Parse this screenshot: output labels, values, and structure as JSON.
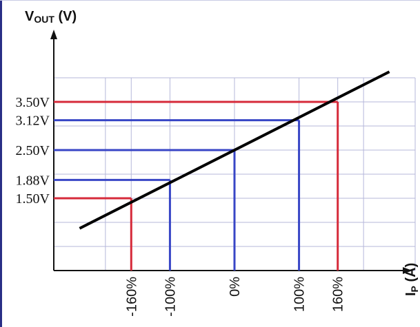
{
  "chart_data": {
    "type": "line",
    "title": "",
    "ylabel": {
      "main": "V",
      "sub": "OUT",
      "unit": " (V)"
    },
    "xlabel": {
      "main": "I",
      "sub": "P",
      "unit": " (A)"
    },
    "xlim": [
      -280,
      280
    ],
    "ylim": [
      0,
      5
    ],
    "x_grid": [
      -280,
      -200,
      -160,
      -100,
      0,
      100,
      160,
      200,
      280
    ],
    "y_grid": [
      0,
      0.5,
      1,
      1.5,
      2,
      2.5,
      3,
      3.5,
      4
    ],
    "grid": true,
    "series": [
      {
        "name": "",
        "color": "#000000",
        "x": [
          -240,
          240
        ],
        "y": [
          0.875,
          4.125
        ]
      }
    ],
    "markers": [
      {
        "x": -160,
        "x_label": "-160%",
        "y": 1.5,
        "y_label": "1.50V",
        "color": "#d62a3a"
      },
      {
        "x": -100,
        "x_label": "-100%",
        "y": 1.88,
        "y_label": "1.88V",
        "color": "#3846c6"
      },
      {
        "x": 0,
        "x_label": "0%",
        "y": 2.5,
        "y_label": "2.50V",
        "color": "#3846c6"
      },
      {
        "x": 100,
        "x_label": "100%",
        "y": 3.12,
        "y_label": "3.12V",
        "color": "#3846c6"
      },
      {
        "x": 160,
        "x_label": "160%",
        "y": 3.5,
        "y_label": "3.50V",
        "color": "#d62a3a"
      }
    ],
    "colors": {
      "border": "#2a2f86",
      "grid": "#b5b7da",
      "axis": "#111111"
    }
  }
}
